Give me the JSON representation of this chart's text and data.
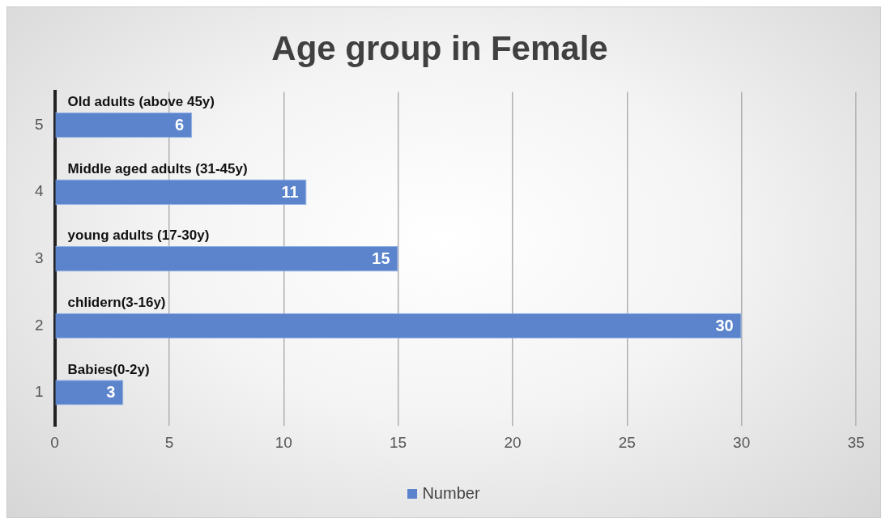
{
  "chart_data": {
    "type": "bar",
    "orientation": "horizontal",
    "title": "Age group in Female",
    "categories": [
      "5",
      "4",
      "3",
      "2",
      "1"
    ],
    "series": [
      {
        "name": "Number",
        "color": "#5b84cc",
        "values": [
          6,
          11,
          15,
          30,
          3
        ]
      }
    ],
    "xlim": [
      0,
      35
    ],
    "xticks": [
      0,
      5,
      10,
      15,
      20,
      25,
      30,
      35
    ],
    "grid": "x",
    "legend": "bottom",
    "data_labels": true,
    "annotations": [
      "Old adults (above 45y)",
      "Middle aged adults (31-45y)",
      "young adults (17-30y)",
      "chlidern(3-16y)",
      "Babies(0-2y)"
    ]
  }
}
